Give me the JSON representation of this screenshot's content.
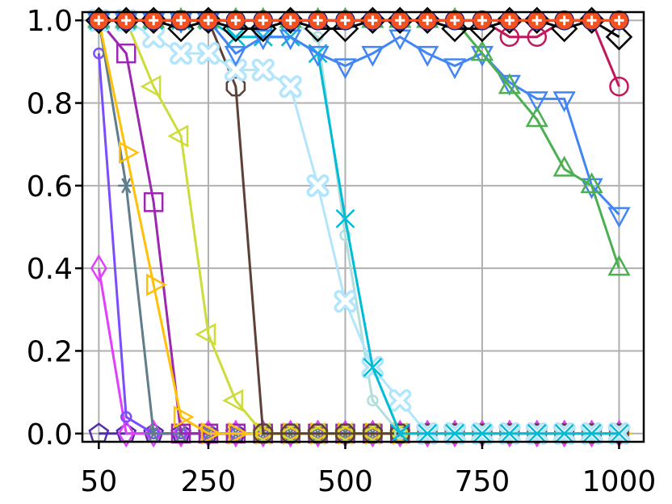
{
  "chart_data": {
    "type": "line",
    "title": "",
    "xlabel": "",
    "ylabel": "",
    "xlim": [
      20,
      1045
    ],
    "ylim": [
      -0.02,
      1.02
    ],
    "grid": true,
    "x_ticks": [
      {
        "value": 50,
        "label": "50"
      },
      {
        "value": 250,
        "label": "250"
      },
      {
        "value": 500,
        "label": "500"
      },
      {
        "value": 750,
        "label": "750"
      },
      {
        "value": 1000,
        "label": "1000"
      }
    ],
    "y_ticks": [
      {
        "value": 0.0,
        "label": "0.0"
      },
      {
        "value": 0.2,
        "label": "0.2"
      },
      {
        "value": 0.4,
        "label": "0.4"
      },
      {
        "value": 0.6,
        "label": "0.6"
      },
      {
        "value": 0.8,
        "label": "0.8"
      },
      {
        "value": 1.0,
        "label": "1.0"
      }
    ],
    "x": [
      50,
      100,
      150,
      200,
      250,
      300,
      350,
      400,
      450,
      500,
      550,
      600,
      650,
      700,
      750,
      800,
      850,
      900,
      950,
      1000
    ],
    "series": [
      {
        "color": "#f4511e",
        "marker": "plus",
        "values": [
          1,
          1,
          1,
          1,
          1,
          1,
          1,
          1,
          1,
          1,
          1,
          1,
          1,
          1,
          1,
          1,
          1,
          1,
          1,
          1
        ]
      },
      {
        "color": "#1a237e",
        "marker": "circle",
        "values": [
          1,
          1,
          1,
          1,
          1,
          1,
          1,
          1,
          1,
          1,
          1,
          1,
          1,
          1,
          1,
          1,
          1,
          1,
          1,
          1
        ]
      },
      {
        "color": "#000000",
        "marker": "diamond",
        "values": [
          1,
          1,
          1,
          0.98,
          1,
          0.98,
          0.98,
          1,
          0.98,
          0.98,
          1,
          1,
          1,
          0.98,
          0.98,
          1,
          1,
          0.98,
          1,
          0.96
        ]
      },
      {
        "color": "#c2185b",
        "marker": "circle",
        "values": [
          1,
          1,
          1,
          1,
          1,
          1,
          1,
          1,
          1,
          1,
          1,
          1,
          1,
          1,
          1,
          0.96,
          0.96,
          1,
          1,
          0.84
        ]
      },
      {
        "color": "#4caf50",
        "marker": "triangle-up",
        "values": [
          1,
          1,
          1,
          1,
          1,
          1,
          1,
          1,
          1,
          1,
          1,
          1,
          1,
          1,
          0.92,
          0.84,
          0.76,
          0.64,
          0.6,
          0.4
        ]
      },
      {
        "color": "#4285f4",
        "marker": "triangle-down",
        "values": [
          1,
          1,
          1,
          1,
          1,
          0.92,
          0.96,
          0.96,
          0.92,
          0.89,
          0.92,
          0.96,
          0.92,
          0.89,
          0.92,
          0.85,
          0.81,
          0.81,
          0.6,
          0.53
        ]
      },
      {
        "color": "#00bcd4",
        "marker": "x",
        "values": [
          1,
          1,
          1,
          1,
          1,
          0.96,
          0.96,
          0.96,
          0.92,
          0.52,
          0.16,
          0,
          0,
          0,
          0,
          0,
          0,
          0,
          0,
          0
        ]
      },
      {
        "color": "#b3e5fc",
        "marker": "x-thick",
        "values": [
          1,
          1,
          0.96,
          0.92,
          0.92,
          0.88,
          0.88,
          0.84,
          0.6,
          0.32,
          0.16,
          0.08,
          0,
          0,
          0,
          0,
          0,
          0,
          0,
          0
        ]
      },
      {
        "color": "#b2dfdb",
        "marker": "circle-small",
        "values": [
          1,
          1,
          1,
          1,
          1,
          1,
          1,
          1,
          0.96,
          0.48,
          0.08,
          0,
          0,
          0,
          0,
          0,
          0,
          0,
          0,
          0
        ]
      },
      {
        "color": "#5d4037",
        "marker": "octagon",
        "values": [
          1,
          1,
          1,
          1,
          1,
          0.84,
          0,
          0,
          0,
          0,
          0,
          0,
          0,
          0,
          0,
          0,
          0,
          0,
          0,
          0
        ]
      },
      {
        "color": "#cddc39",
        "marker": "triangle-left",
        "values": [
          1,
          1,
          0.84,
          0.72,
          0.24,
          0.08,
          0,
          0,
          0,
          0,
          0,
          0,
          0,
          0,
          0,
          0,
          0,
          0,
          0,
          0
        ]
      },
      {
        "color": "#ffc107",
        "marker": "triangle-right",
        "values": [
          1,
          0.68,
          0.36,
          0.04,
          0,
          0,
          0,
          0,
          0,
          0,
          0,
          0,
          0,
          0,
          0,
          0,
          0,
          0,
          0,
          0
        ]
      },
      {
        "color": "#9c27b0",
        "marker": "square",
        "values": [
          1,
          0.92,
          0.56,
          0,
          0,
          0,
          0,
          0,
          0,
          0,
          0,
          0,
          0,
          0,
          0,
          0,
          0,
          0,
          0,
          0
        ]
      },
      {
        "color": "#607d8b",
        "marker": "star",
        "values": [
          1,
          0.6,
          0,
          0,
          0,
          0,
          0,
          0,
          0,
          0,
          0,
          0,
          0,
          0,
          0,
          0,
          0,
          0,
          0,
          0
        ]
      },
      {
        "color": "#7c4dff",
        "marker": "circle-small",
        "values": [
          0.92,
          0.04,
          0,
          0,
          0,
          0,
          0,
          0,
          0,
          0,
          0,
          0,
          0,
          0,
          0,
          0,
          0,
          0,
          0,
          0
        ]
      },
      {
        "color": "#e040fb",
        "marker": "thin-diamond",
        "values": [
          0.4,
          0,
          0,
          0,
          0,
          0,
          0,
          0,
          0,
          0,
          0,
          0,
          0,
          0,
          0,
          0,
          0,
          0,
          0,
          0
        ]
      },
      {
        "color": "#512da8",
        "marker": "pentagon",
        "values": [
          0,
          0,
          0,
          0,
          0,
          0,
          0,
          0,
          0,
          0,
          0,
          0,
          0,
          0,
          0,
          0,
          0,
          0,
          0,
          0
        ]
      }
    ]
  }
}
